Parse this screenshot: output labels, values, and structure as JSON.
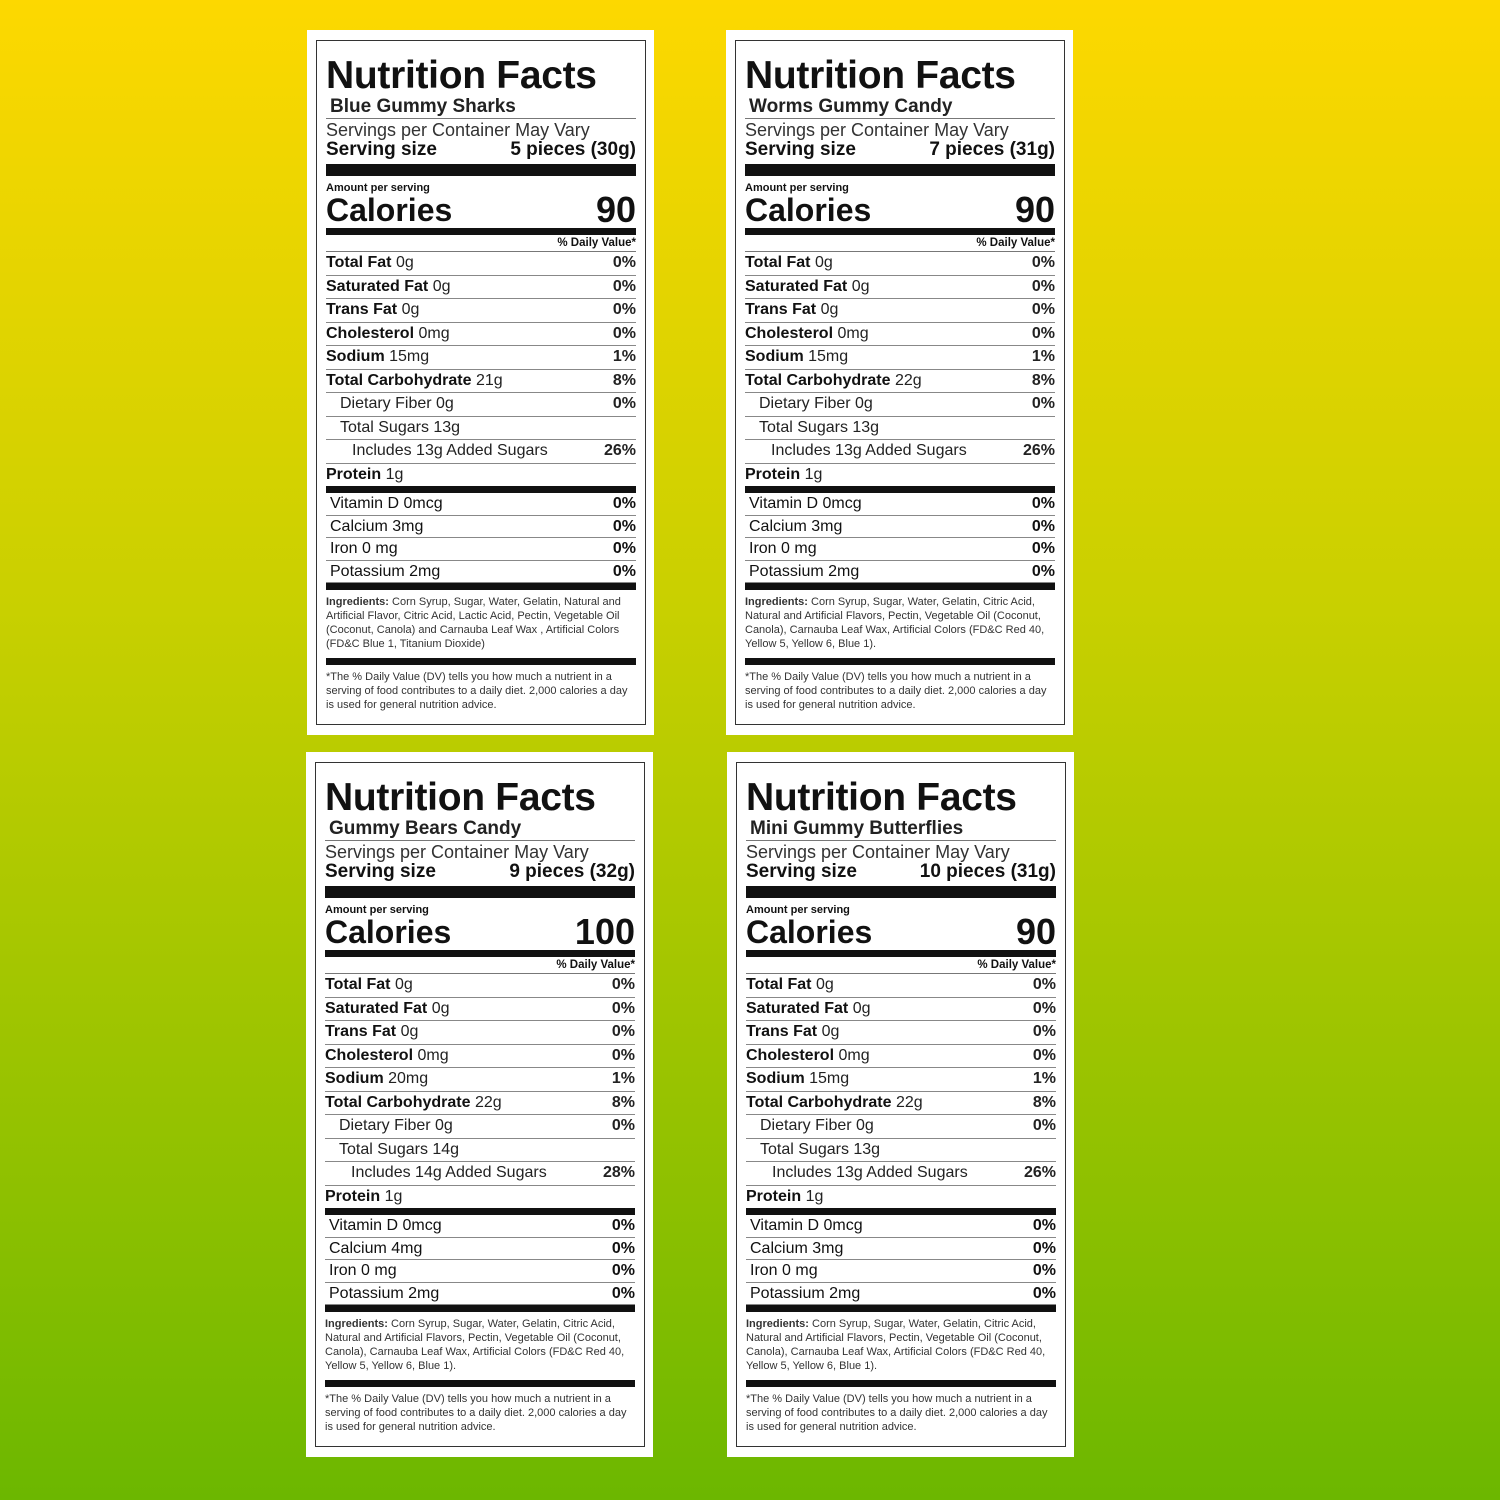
{
  "labels": [
    {
      "title": "Nutrition Facts",
      "product": "Blue Gummy Sharks",
      "servings": "Servings per Container May Vary",
      "serving_size_label": "Serving size",
      "serving_size": "5 pieces (30g)",
      "amount_label": "Amount per serving",
      "calories_label": "Calories",
      "calories": "90",
      "dv_header": "% Daily Value*",
      "nutrients": [
        [
          "Total Fat",
          "0g",
          "0%",
          0
        ],
        [
          "Saturated Fat",
          "0g",
          "0%",
          0
        ],
        [
          "Trans Fat",
          "0g",
          "0%",
          0
        ],
        [
          "Cholesterol",
          "0mg",
          "0%",
          0
        ],
        [
          "Sodium",
          "15mg",
          "1%",
          0
        ],
        [
          "Total Carbohydrate",
          "21g",
          "8%",
          0
        ],
        [
          "Dietary Fiber 0g",
          "",
          "0%",
          1
        ],
        [
          "Total Sugars 13g",
          "",
          "",
          1
        ],
        [
          "Includes 13g Added Sugars",
          "",
          "26%",
          2
        ],
        [
          "Protein",
          "1g",
          "",
          0
        ]
      ],
      "vitamins": [
        [
          "Vitamin D 0mcg",
          "0%"
        ],
        [
          "Calcium 3mg",
          "0%"
        ],
        [
          "Iron 0 mg",
          "0%"
        ],
        [
          "Potassium 2mg",
          "0%"
        ]
      ],
      "ingredients_label": "Ingredients:",
      "ingredients": "Corn Syrup, Sugar, Water, Gelatin, Natural and Artificial Flavor, Citric Acid, Lactic Acid, Pectin, Vegetable Oil (Coconut, Canola) and Carnauba Leaf Wax , Artificial Colors (FD&C Blue 1, Titanium Dioxide)",
      "footnote": "*The % Daily Value (DV) tells you how much a nutrient in a serving of food contributes to a daily diet. 2,000 calories a day is used for general nutrition advice."
    },
    {
      "title": "Nutrition Facts",
      "product": "Worms Gummy Candy",
      "servings": "Servings per Container May Vary",
      "serving_size_label": "Serving size",
      "serving_size": "7 pieces (31g)",
      "amount_label": "Amount per serving",
      "calories_label": "Calories",
      "calories": "90",
      "dv_header": "% Daily Value*",
      "nutrients": [
        [
          "Total Fat",
          "0g",
          "0%",
          0
        ],
        [
          "Saturated Fat",
          "0g",
          "0%",
          0
        ],
        [
          "Trans Fat",
          "0g",
          "0%",
          0
        ],
        [
          "Cholesterol",
          "0mg",
          "0%",
          0
        ],
        [
          "Sodium",
          "15mg",
          "1%",
          0
        ],
        [
          "Total Carbohydrate",
          "22g",
          "8%",
          0
        ],
        [
          "Dietary Fiber 0g",
          "",
          "0%",
          1
        ],
        [
          "Total Sugars 13g",
          "",
          "",
          1
        ],
        [
          "Includes 13g Added Sugars",
          "",
          "26%",
          2
        ],
        [
          "Protein",
          "1g",
          "",
          0
        ]
      ],
      "vitamins": [
        [
          "Vitamin D 0mcg",
          "0%"
        ],
        [
          "Calcium 3mg",
          "0%"
        ],
        [
          "Iron 0 mg",
          "0%"
        ],
        [
          "Potassium 2mg",
          "0%"
        ]
      ],
      "ingredients_label": "Ingredients:",
      "ingredients": "Corn Syrup, Sugar, Water, Gelatin, Citric Acid, Natural and Artificial Flavors, Pectin, Vegetable Oil (Coconut, Canola), Carnauba Leaf Wax, Artificial Colors (FD&C Red 40, Yellow 5, Yellow 6, Blue 1).",
      "footnote": "*The % Daily Value (DV) tells you how much a nutrient in a serving of food contributes to a daily diet. 2,000 calories a day is used for general nutrition advice."
    },
    {
      "title": "Nutrition Facts",
      "product": "Gummy Bears Candy",
      "servings": "Servings per Container May Vary",
      "serving_size_label": "Serving size",
      "serving_size": "9 pieces (32g)",
      "amount_label": "Amount per serving",
      "calories_label": "Calories",
      "calories": "100",
      "dv_header": "% Daily Value*",
      "nutrients": [
        [
          "Total Fat",
          "0g",
          "0%",
          0
        ],
        [
          "Saturated Fat",
          "0g",
          "0%",
          0
        ],
        [
          "Trans Fat",
          "0g",
          "0%",
          0
        ],
        [
          "Cholesterol",
          "0mg",
          "0%",
          0
        ],
        [
          "Sodium",
          "20mg",
          "1%",
          0
        ],
        [
          "Total Carbohydrate",
          "22g",
          "8%",
          0
        ],
        [
          "Dietary Fiber 0g",
          "",
          "0%",
          1
        ],
        [
          "Total Sugars 14g",
          "",
          "",
          1
        ],
        [
          "Includes 14g Added Sugars",
          "",
          "28%",
          2
        ],
        [
          "Protein",
          "1g",
          "",
          0
        ]
      ],
      "vitamins": [
        [
          "Vitamin D 0mcg",
          "0%"
        ],
        [
          "Calcium 4mg",
          "0%"
        ],
        [
          "Iron 0 mg",
          "0%"
        ],
        [
          "Potassium 2mg",
          "0%"
        ]
      ],
      "ingredients_label": "Ingredients:",
      "ingredients": "Corn Syrup, Sugar, Water, Gelatin, Citric Acid, Natural and Artificial Flavors, Pectin, Vegetable Oil (Coconut, Canola), Carnauba Leaf Wax, Artificial Colors (FD&C Red 40, Yellow 5, Yellow 6, Blue 1).",
      "footnote": "*The % Daily Value (DV) tells you how much a nutrient in a serving of food contributes to a daily diet. 2,000 calories a day is used for general nutrition advice."
    },
    {
      "title": "Nutrition Facts",
      "product": "Mini Gummy Butterflies",
      "servings": "Servings per Container May Vary",
      "serving_size_label": "Serving size",
      "serving_size": "10 pieces (31g)",
      "amount_label": "Amount per serving",
      "calories_label": "Calories",
      "calories": "90",
      "dv_header": "% Daily Value*",
      "nutrients": [
        [
          "Total Fat",
          "0g",
          "0%",
          0
        ],
        [
          "Saturated Fat",
          "0g",
          "0%",
          0
        ],
        [
          "Trans Fat",
          "0g",
          "0%",
          0
        ],
        [
          "Cholesterol",
          "0mg",
          "0%",
          0
        ],
        [
          "Sodium",
          "15mg",
          "1%",
          0
        ],
        [
          "Total Carbohydrate",
          "22g",
          "8%",
          0
        ],
        [
          "Dietary Fiber 0g",
          "",
          "0%",
          1
        ],
        [
          "Total Sugars 13g",
          "",
          "",
          1
        ],
        [
          "Includes 13g Added Sugars",
          "",
          "26%",
          2
        ],
        [
          "Protein",
          "1g",
          "",
          0
        ]
      ],
      "vitamins": [
        [
          "Vitamin D 0mcg",
          "0%"
        ],
        [
          "Calcium 3mg",
          "0%"
        ],
        [
          "Iron 0 mg",
          "0%"
        ],
        [
          "Potassium 2mg",
          "0%"
        ]
      ],
      "ingredients_label": "Ingredients:",
      "ingredients": "Corn Syrup, Sugar, Water, Gelatin, Citric Acid, Natural and Artificial Flavors, Pectin, Vegetable Oil (Coconut, Canola), Carnauba Leaf Wax, Artificial Colors (FD&C Red 40, Yellow 5, Yellow 6, Blue 1).",
      "footnote": "*The % Daily Value (DV) tells you how much a nutrient in a serving of food contributes to a daily diet. 2,000 calories a day is used for general nutrition advice."
    }
  ]
}
